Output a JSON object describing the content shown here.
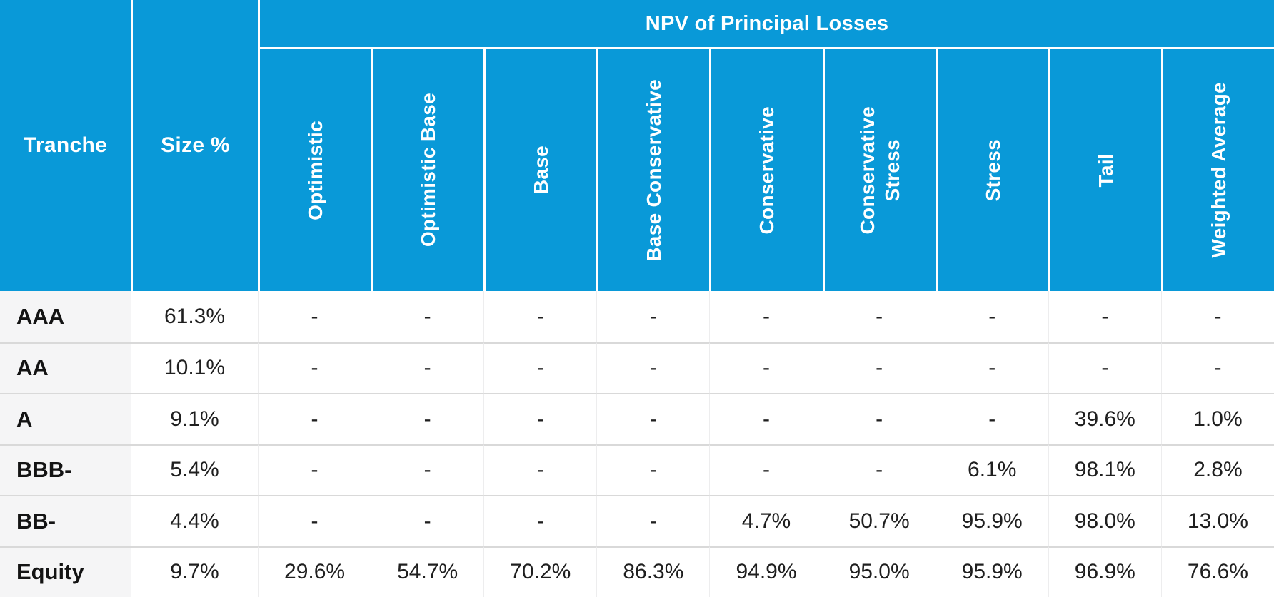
{
  "header": {
    "tranche": "Tranche",
    "size": "Size %",
    "group": "NPV of Principal Losses",
    "scenarios": [
      "Optimistic",
      "Optimistic Base",
      "Base",
      "Base Conservative",
      "Conservative",
      "Conservative\nStress",
      "Stress",
      "Tail",
      "Weighted Average"
    ]
  },
  "rows": [
    {
      "tranche": "AAA",
      "size": "61.3%",
      "values": [
        "-",
        "-",
        "-",
        "-",
        "-",
        "-",
        "-",
        "-",
        "-"
      ]
    },
    {
      "tranche": "AA",
      "size": "10.1%",
      "values": [
        "-",
        "-",
        "-",
        "-",
        "-",
        "-",
        "-",
        "-",
        "-"
      ]
    },
    {
      "tranche": "A",
      "size": "9.1%",
      "values": [
        "-",
        "-",
        "-",
        "-",
        "-",
        "-",
        "-",
        "39.6%",
        "1.0%"
      ]
    },
    {
      "tranche": "BBB-",
      "size": "5.4%",
      "values": [
        "-",
        "-",
        "-",
        "-",
        "-",
        "-",
        "6.1%",
        "98.1%",
        "2.8%"
      ]
    },
    {
      "tranche": "BB-",
      "size": "4.4%",
      "values": [
        "-",
        "-",
        "-",
        "-",
        "4.7%",
        "50.7%",
        "95.9%",
        "98.0%",
        "13.0%"
      ]
    },
    {
      "tranche": "Equity",
      "size": "9.7%",
      "values": [
        "29.6%",
        "54.7%",
        "70.2%",
        "86.3%",
        "94.9%",
        "95.0%",
        "95.9%",
        "96.9%",
        "76.6%"
      ]
    }
  ],
  "colors": {
    "header_blue": "#0999d8",
    "header_text": "#ffffff",
    "label_column_bg": "#f5f5f6",
    "row_divider": "#d9d9d9",
    "column_divider": "#ededee",
    "body_text": "#1f1f1f"
  },
  "chart_data": {
    "type": "table",
    "title": "NPV of Principal Losses",
    "group_header_label": "NPV of Principal Losses",
    "group_header_spans_columns": [
      "Optimistic",
      "Optimistic Base",
      "Base",
      "Base Conservative",
      "Conservative",
      "Conservative Stress",
      "Stress",
      "Tail",
      "Weighted Average"
    ],
    "columns": [
      "Tranche",
      "Size %",
      "Optimistic",
      "Optimistic Base",
      "Base",
      "Base Conservative",
      "Conservative",
      "Conservative Stress",
      "Stress",
      "Tail",
      "Weighted Average"
    ],
    "rows": [
      [
        "AAA",
        "61.3%",
        "-",
        "-",
        "-",
        "-",
        "-",
        "-",
        "-",
        "-",
        "-"
      ],
      [
        "AA",
        "10.1%",
        "-",
        "-",
        "-",
        "-",
        "-",
        "-",
        "-",
        "-",
        "-"
      ],
      [
        "A",
        "9.1%",
        "-",
        "-",
        "-",
        "-",
        "-",
        "-",
        "-",
        "39.6%",
        "1.0%"
      ],
      [
        "BBB-",
        "5.4%",
        "-",
        "-",
        "-",
        "-",
        "-",
        "-",
        "6.1%",
        "98.1%",
        "2.8%"
      ],
      [
        "BB-",
        "4.4%",
        "-",
        "-",
        "-",
        "-",
        "4.7%",
        "50.7%",
        "95.9%",
        "98.0%",
        "13.0%"
      ],
      [
        "Equity",
        "9.7%",
        "29.6%",
        "54.7%",
        "70.2%",
        "86.3%",
        "94.9%",
        "95.0%",
        "95.9%",
        "96.9%",
        "76.6%"
      ]
    ]
  }
}
